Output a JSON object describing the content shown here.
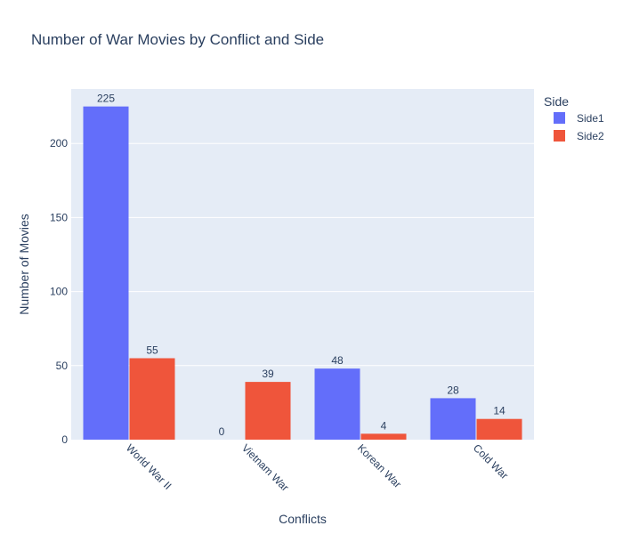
{
  "chart_data": {
    "type": "bar",
    "title": "Number of War Movies by Conflict and Side",
    "xlabel": "Conflicts",
    "ylabel": "Number of Movies",
    "categories": [
      "World War II",
      "Vietnam War",
      "Korean War",
      "Cold War"
    ],
    "series": [
      {
        "name": "Side1",
        "color": "#636efa",
        "values": [
          225,
          0,
          48,
          28
        ]
      },
      {
        "name": "Side2",
        "color": "#ef553b",
        "values": [
          55,
          39,
          4,
          14
        ]
      }
    ],
    "ylim": [
      0,
      236.8
    ],
    "yticks": [
      0,
      50,
      100,
      150,
      200
    ],
    "grid": true,
    "legend": {
      "title": "Side",
      "placement": "top-right"
    },
    "plot_background": "#e5ecf6"
  }
}
